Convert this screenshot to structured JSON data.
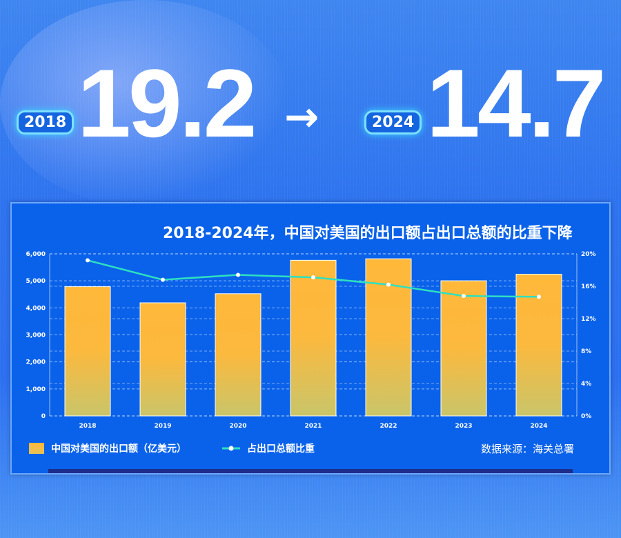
{
  "header": {
    "from_year": "2018",
    "from_value": "19.2",
    "arrow": "→",
    "to_year": "2024",
    "to_value": "14.7"
  },
  "source": "数据来源：海关总署",
  "colors": {
    "bar": "#ffb83a",
    "line": "#2ee0c0",
    "background": "#0a62ea"
  },
  "chart_data": {
    "type": "bar+line",
    "title": "2018-2024年，中国对美国的出口额占出口总额的比重下降",
    "categories": [
      "2018",
      "2019",
      "2020",
      "2021",
      "2022",
      "2023",
      "2024"
    ],
    "series": [
      {
        "name": "中国对美国的出口额（亿美元）",
        "type": "bar",
        "axis": "left",
        "values": [
          4784,
          4187,
          4524,
          5761,
          5817,
          5002,
          5247
        ]
      },
      {
        "name": "占出口总额比重",
        "type": "line",
        "axis": "right",
        "values": [
          19.2,
          16.8,
          17.4,
          17.1,
          16.2,
          14.8,
          14.7
        ]
      }
    ],
    "y_left": {
      "range": [
        0,
        6000
      ],
      "ticks": [
        "0",
        "1,000",
        "2,000",
        "3,000",
        "4,000",
        "5,000",
        "6,000"
      ]
    },
    "y_right": {
      "range": [
        0,
        20
      ],
      "ticks": [
        "0%",
        "4%",
        "8%",
        "12%",
        "16%",
        "20%"
      ]
    },
    "grid": true,
    "legend": "bottom"
  }
}
